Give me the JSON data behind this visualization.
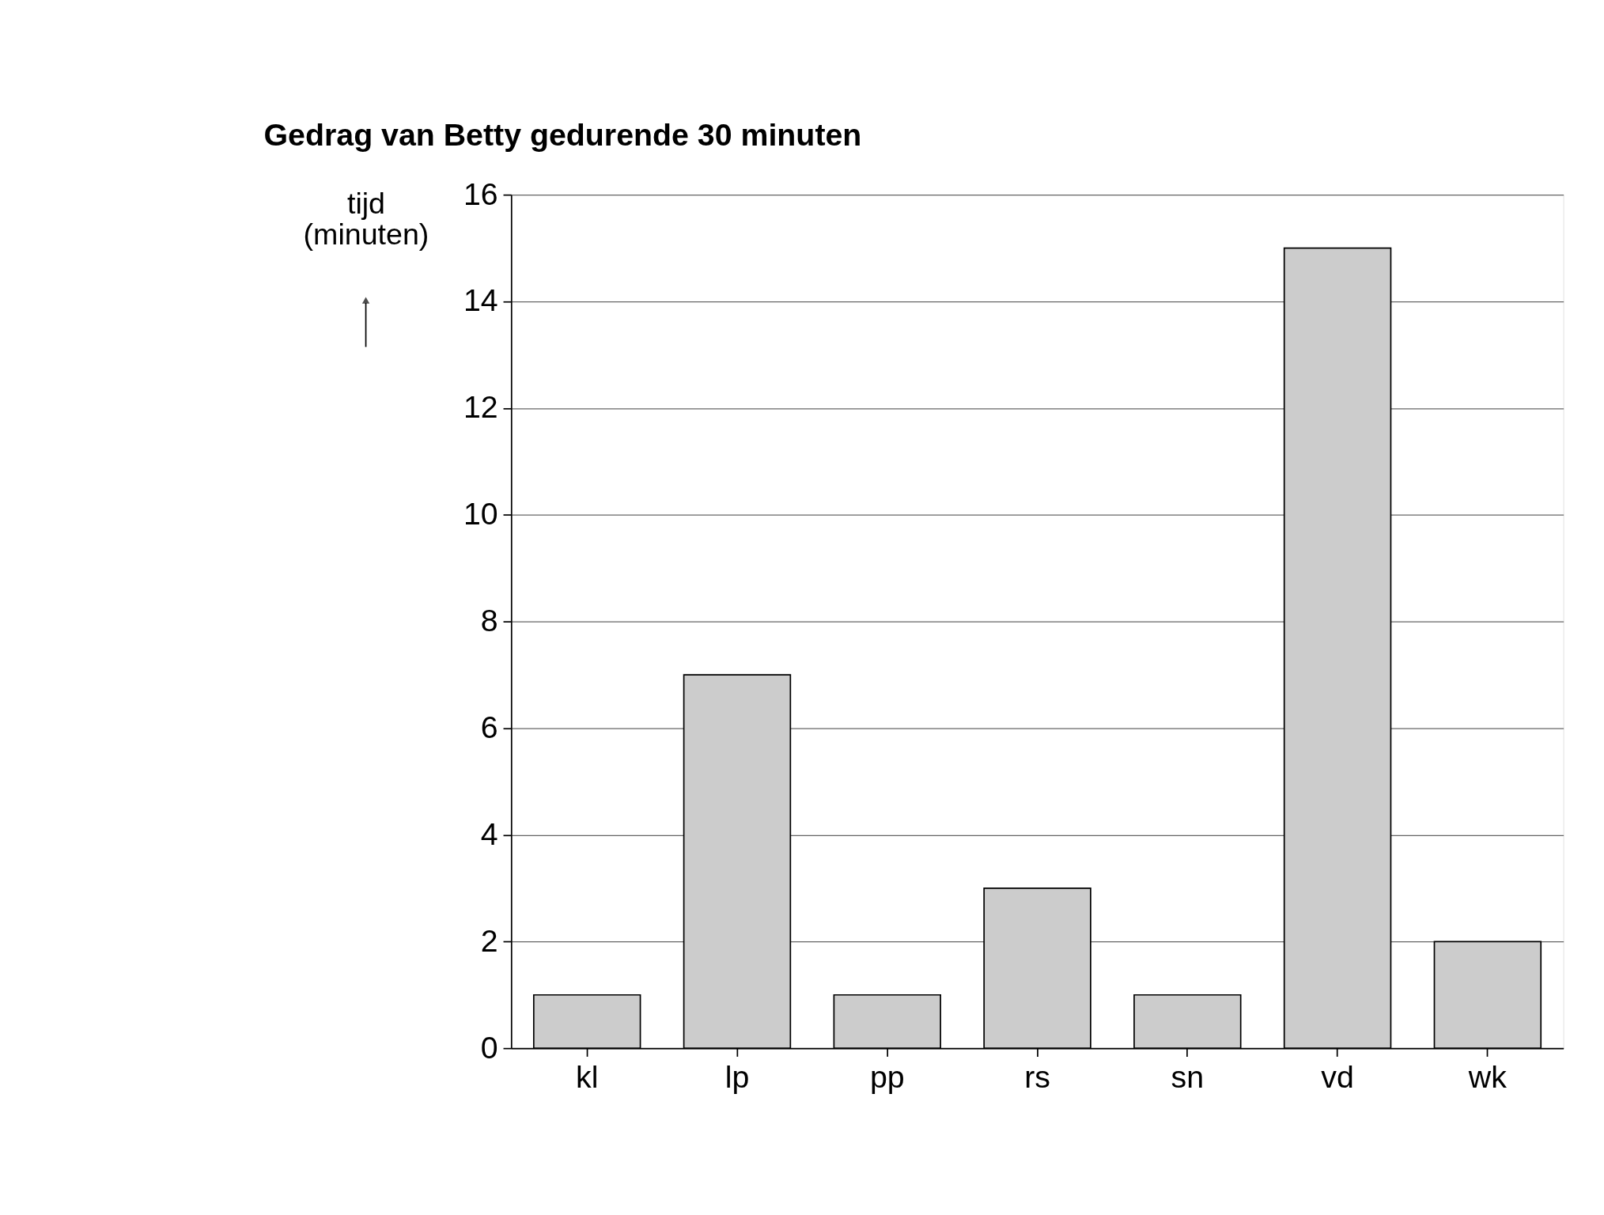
{
  "chart_data": {
    "type": "bar",
    "title": "Gedrag van Betty gedurende 30 minuten",
    "ylabel": "tijd (minuten)",
    "categories": [
      "kl",
      "lp",
      "pp",
      "rs",
      "sn",
      "vd",
      "wk"
    ],
    "values": [
      1,
      7,
      1,
      3,
      1,
      15,
      2
    ],
    "color": "#cccccc",
    "ylim": [
      0,
      16
    ],
    "yticks": [
      0,
      2,
      4,
      6,
      8,
      10,
      12,
      14,
      16
    ],
    "grid": "y"
  }
}
